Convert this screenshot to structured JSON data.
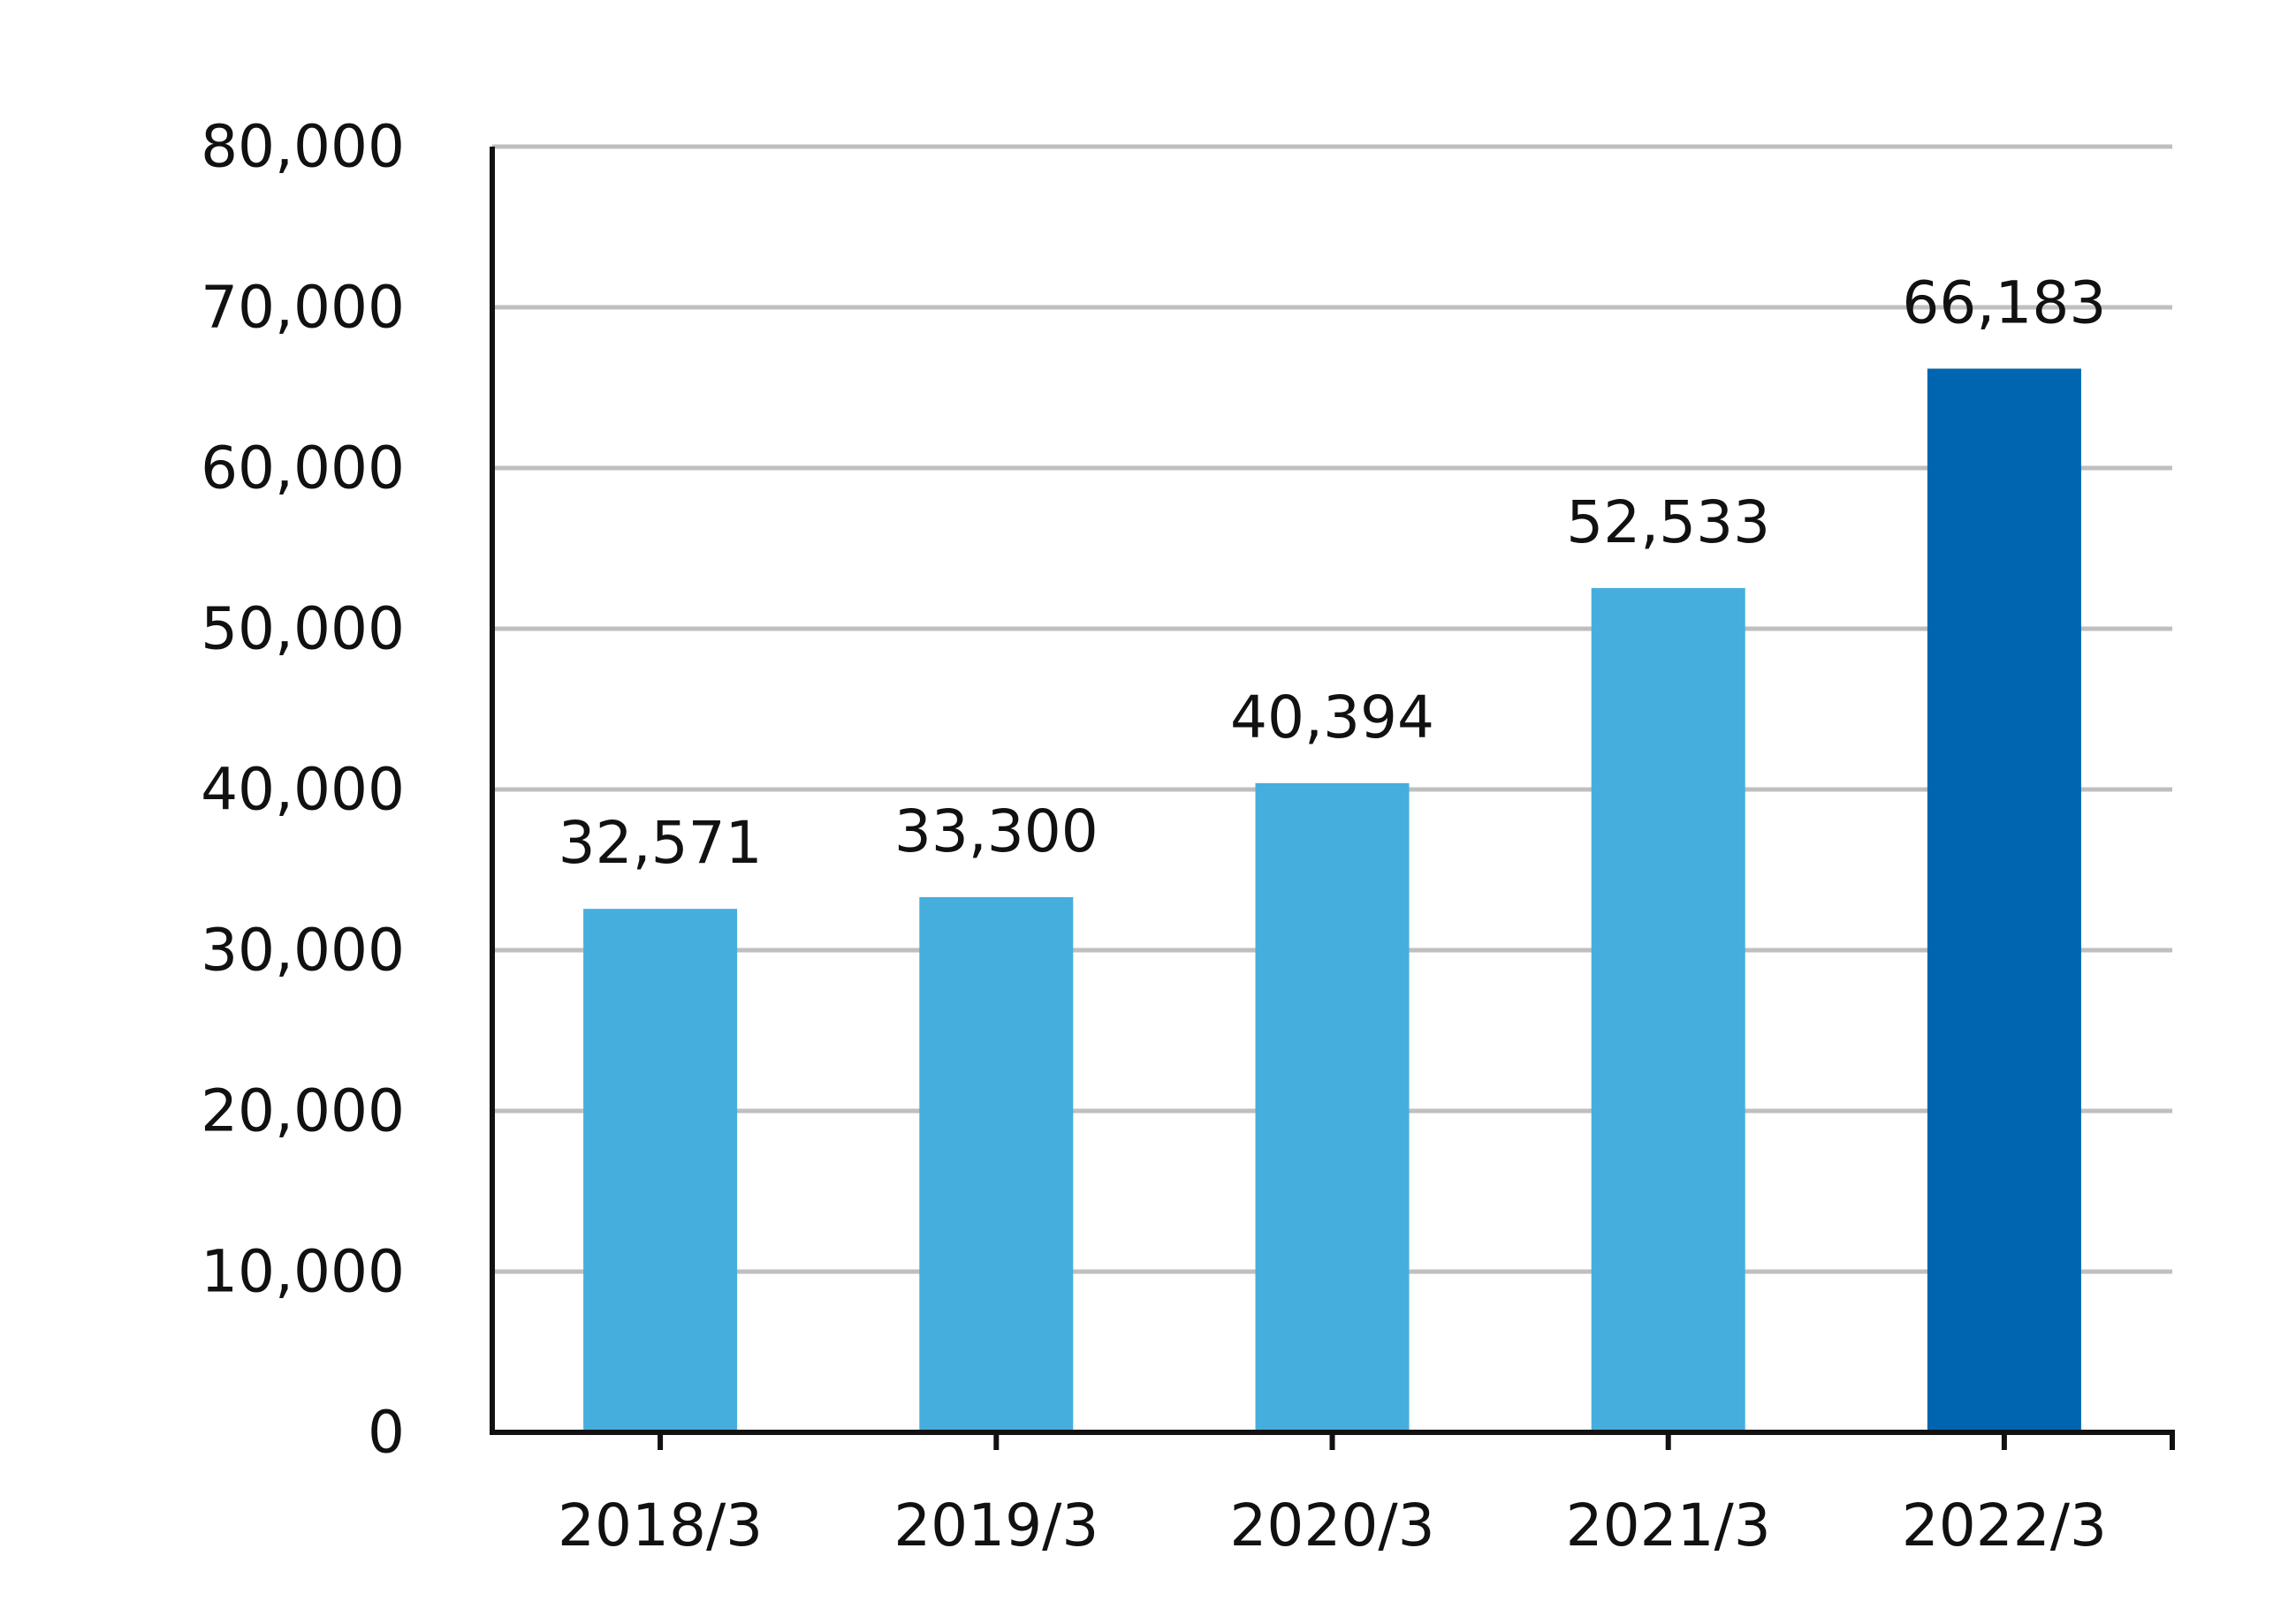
{
  "chart_data": {
    "type": "bar",
    "categories": [
      "2018/3",
      "2019/3",
      "2020/3",
      "2021/3",
      "2022/3"
    ],
    "values": [
      32571,
      33300,
      40394,
      52533,
      66183
    ],
    "value_labels": [
      "32,571",
      "33,300",
      "40,394",
      "52,533",
      "66,183"
    ],
    "ylim": [
      0,
      80000
    ],
    "yticks": [
      0,
      10000,
      20000,
      30000,
      40000,
      50000,
      60000,
      70000,
      80000
    ],
    "ytick_labels": [
      "0",
      "10,000",
      "20,000",
      "30,000",
      "40,000",
      "50,000",
      "60,000",
      "70,000",
      "80,000"
    ],
    "grid": true,
    "legend": "none",
    "colors": {
      "bar": "#45AEDD",
      "highlight_bar": "#0065B0",
      "grid": "#BFBFBF",
      "axis": "#111111"
    },
    "highlight_index": 4
  }
}
